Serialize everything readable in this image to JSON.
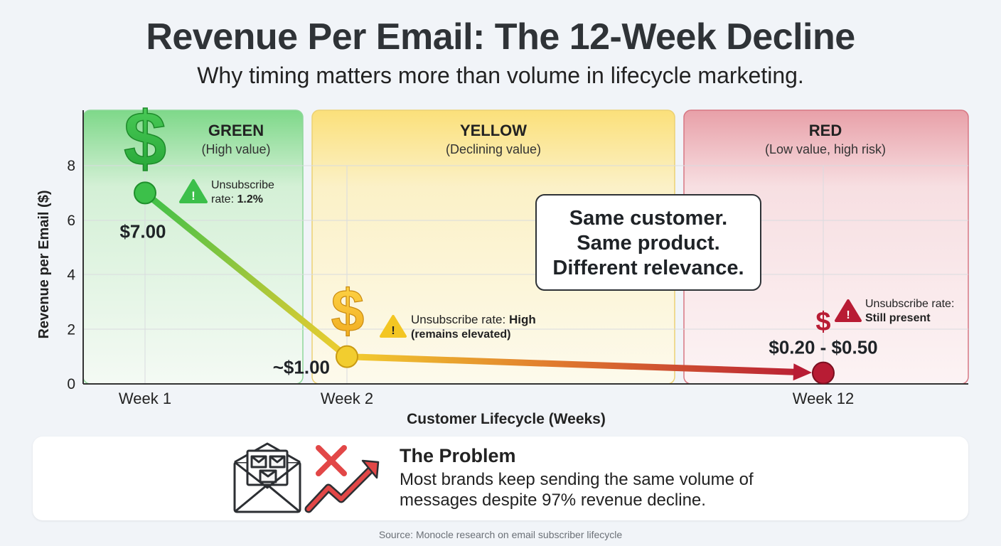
{
  "header": {
    "title": "Revenue Per Email: The 12-Week Decline",
    "subtitle": "Why timing matters more than volume in lifecycle marketing."
  },
  "chart_data": {
    "type": "line",
    "xlabel": "Customer Lifecycle (Weeks)",
    "ylabel": "Revenue per Email ($)",
    "ylim": [
      0,
      8
    ],
    "y_ticks": [
      0,
      2,
      4,
      6,
      8
    ],
    "grid": true,
    "x_ticks": [
      {
        "week": 1,
        "label": "Week 1"
      },
      {
        "week": 2,
        "label": "Week 2"
      },
      {
        "week": 12,
        "label": "Week 12"
      }
    ],
    "points": [
      {
        "week": 1,
        "value": 7.0,
        "label": "$7.00",
        "color": "#3cc04a"
      },
      {
        "week": 2,
        "value": 1.0,
        "label": "~$1.00",
        "color": "#f2cd2f"
      },
      {
        "week": 12,
        "value": 0.4,
        "label": "$0.20 - $0.50",
        "color": "#b81c34"
      }
    ],
    "zones": [
      {
        "name": "GREEN",
        "desc": "(High value)",
        "color": "#3cc04a"
      },
      {
        "name": "YELLOW",
        "desc": "(Declining value)",
        "color": "#f0cc3a"
      },
      {
        "name": "RED",
        "desc": "(Low value, high risk)",
        "color": "#c8283f"
      }
    ],
    "annotations": {
      "green": {
        "prefix": "Unsubscribe",
        "line2_prefix": "rate: ",
        "value": "1.2%"
      },
      "yellow": {
        "prefix": "Unsubscribe rate: ",
        "value": "High",
        "line2": "(remains elevated)"
      },
      "red": {
        "prefix": "Unsubscribe rate:",
        "value": "Still present"
      }
    },
    "callout": [
      "Same customer.",
      "Same product.",
      "Different relevance."
    ]
  },
  "problem": {
    "title": "The Problem",
    "body": "Most brands keep sending the same volume of messages despite 97% revenue decline."
  },
  "source": "Source: Monocle research on email subscriber lifecycle"
}
